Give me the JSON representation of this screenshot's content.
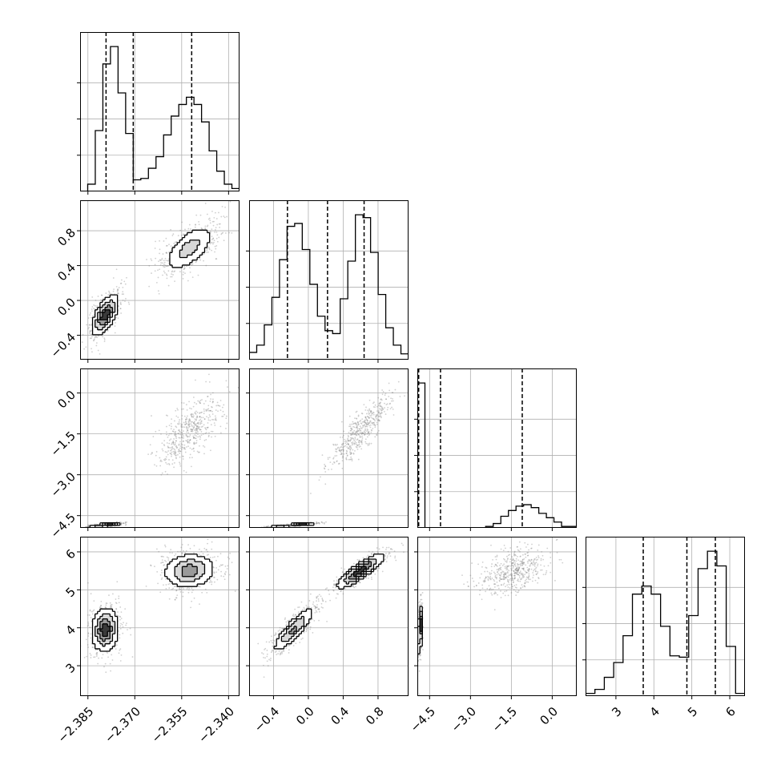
{
  "chart_data": {
    "type": "corner",
    "grid": true,
    "colors": {
      "line": "#000000",
      "grid": "#b0b0b0",
      "points": "#777777",
      "background": "#ffffff"
    },
    "parameters": [
      {
        "range": [
          -2.3875,
          -2.3365
        ],
        "ticks": [
          -2.385,
          -2.37,
          -2.355,
          -2.34
        ],
        "tick_labels": [
          "−2.385",
          "−2.370",
          "−2.355",
          "−2.340"
        ],
        "quantiles": [
          -2.3792,
          -2.3705,
          -2.3518
        ],
        "hist": [
          0,
          0.05,
          0.42,
          0.88,
          1.0,
          0.68,
          0.4,
          0.08,
          0.09,
          0.16,
          0.24,
          0.39,
          0.52,
          0.6,
          0.65,
          0.6,
          0.48,
          0.28,
          0.14,
          0.05,
          0.02
        ],
        "modes": [
          {
            "center": -2.3795,
            "sd": 0.0024,
            "weight": 0.45
          },
          {
            "center": -2.3525,
            "sd": 0.0045,
            "weight": 0.55
          }
        ]
      },
      {
        "range": [
          -0.68,
          1.15
        ],
        "ticks": [
          -0.4,
          0.0,
          0.4,
          0.8
        ],
        "tick_labels": [
          "−0.4",
          "0.0",
          "0.4",
          "0.8"
        ],
        "quantiles": [
          -0.24,
          0.22,
          0.64
        ],
        "hist": [
          0.05,
          0.1,
          0.24,
          0.43,
          0.69,
          0.92,
          0.94,
          0.76,
          0.52,
          0.3,
          0.2,
          0.18,
          0.42,
          0.68,
          1.0,
          0.98,
          0.74,
          0.45,
          0.22,
          0.1,
          0.04
        ],
        "modes": [
          {
            "center": -0.17,
            "sd": 0.13,
            "weight": 0.5
          },
          {
            "center": 0.6,
            "sd": 0.15,
            "weight": 0.5
          }
        ]
      },
      {
        "range": [
          -4.95,
          0.9
        ],
        "ticks": [
          -4.5,
          -3.0,
          -1.5,
          0.0
        ],
        "tick_labels": [
          "−4.5",
          "−3.0",
          "−1.5",
          "0.0"
        ],
        "quantiles": [
          -4.9,
          -4.1,
          -1.1
        ],
        "hist": [
          1.0,
          0,
          0,
          0,
          0,
          0,
          0,
          0,
          0,
          0.01,
          0.03,
          0.08,
          0.12,
          0.15,
          0.16,
          0.14,
          0.1,
          0.07,
          0.04,
          0.01,
          0.01
        ],
        "modes": [
          {
            "center": -4.85,
            "sd": 0.04,
            "weight": 0.45
          },
          {
            "center": -1.4,
            "sd": 0.55,
            "weight": 0.55
          }
        ]
      },
      {
        "range": [
          2.2,
          6.4
        ],
        "ticks": [
          3,
          4,
          5,
          6
        ],
        "tick_labels": [
          "3",
          "4",
          "5",
          "6"
        ],
        "quantiles": [
          3.72,
          4.87,
          5.62
        ],
        "hist": [
          0.02,
          0.05,
          0.14,
          0.25,
          0.45,
          0.76,
          0.82,
          0.76,
          0.52,
          0.3,
          0.29,
          0.6,
          0.95,
          1.08,
          0.97,
          0.37,
          0.02
        ],
        "modes": [
          {
            "center": 3.95,
            "sd": 0.32,
            "weight": 0.5
          },
          {
            "center": 5.5,
            "sd": 0.25,
            "weight": 0.5
          }
        ]
      }
    ],
    "clusters": [
      {
        "weight": 0.45,
        "mean": [
          -2.3795,
          -0.17,
          -4.85,
          3.95
        ],
        "sd": [
          0.0024,
          0.13,
          0.04,
          0.32
        ]
      },
      {
        "weight": 0.55,
        "mean": [
          -2.3525,
          0.6,
          -1.4,
          5.5
        ],
        "sd": [
          0.0045,
          0.15,
          0.55,
          0.25
        ]
      }
    ],
    "correlations": {
      "0-1": 0.6,
      "0-2": 0.65,
      "0-3": 0.1,
      "1-2": 0.85,
      "1-3": 0.85,
      "2-3": 0.4
    }
  }
}
